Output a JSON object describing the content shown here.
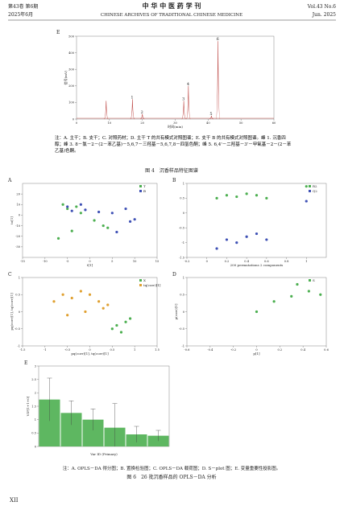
{
  "header": {
    "volume": "第43卷 第6期",
    "date": "2025年6月",
    "journal": "中 华 中 医 药 学 刊",
    "journal_en": "CHINESE ARCHIVES OF TRADITIONAL CHINESE MEDICINE",
    "volume_en": "Vol.43 No.6",
    "date_en": "Jun. 2025"
  },
  "figure4": {
    "panel": "E",
    "chart_data": {
      "type": "chromatogram",
      "xlabel": "时间(min)",
      "ylabel": "信号(mV)",
      "color": "#c0504d",
      "x": [
        9,
        17,
        20,
        32.6,
        34,
        41,
        43
      ],
      "values": [
        110,
        120,
        30,
        110,
        200,
        20,
        470
      ],
      "labels": [
        null,
        "1",
        "2",
        "3",
        "4",
        "5",
        "6"
      ],
      "xlim": [
        0,
        60
      ],
      "xticks": [
        0,
        10,
        20,
        30,
        40,
        50,
        60
      ],
      "ylim": [
        0,
        500
      ],
      "yticks": [
        0,
        100,
        200,
        300,
        400,
        500
      ]
    },
    "note": "注：A. 主干；B. 支干；C. 对照药材；D. 主干 T 的共有模式对照图谱；E. 支干 B 的共有模式对照图谱。峰 1. 沉香四醇；峰 3. 8－氯－2－(2－苯乙基)－5,6,7－三羟基－5,6,7,8－四氢色酮；峰 5. 6,4'－二羟基－3'－甲氧基－2－(2－苯乙基)色酮。",
    "title": "图 4　沉香样品特征图谱"
  },
  "figure6": {
    "panels": [
      {
        "label": "A",
        "chart_data": {
          "type": "scatter",
          "xlabel": "t[1]",
          "ylabel": "to[1]",
          "xlim": [
            -15,
            15
          ],
          "xticks": [
            -15,
            -10,
            -5,
            0,
            5,
            10,
            15
          ],
          "ylim": [
            -40,
            30
          ],
          "yticks": [
            -30,
            -20,
            -10,
            0,
            10,
            20
          ],
          "series": [
            {
              "name": "T",
              "color": "#4caf50",
              "x": [
                -6,
                -5,
                -3,
                -2,
                1,
                3,
                4,
                -4,
                -7
              ],
              "values": [
                10,
                6,
                8,
                2,
                -5,
                -10,
                -12,
                -15,
                -22
              ]
            },
            {
              "name": "B",
              "color": "#3f51b5",
              "x": [
                -5,
                -4,
                -2,
                -1,
                2,
                5,
                8,
                9,
                10,
                6
              ],
              "values": [
                8,
                4,
                10,
                5,
                3,
                2,
                6,
                -6,
                -4,
                -16
              ]
            }
          ]
        }
      },
      {
        "label": "B",
        "chart_data": {
          "type": "scatter",
          "xlabel": "200 permutations 2 components",
          "xlim": [
            -0.2,
            1.2
          ],
          "xticks": [
            -0.2,
            0,
            0.2,
            0.4,
            0.6,
            0.8,
            1
          ],
          "ylim": [
            -1.5,
            1
          ],
          "yticks": [
            -1.5,
            -1,
            -0.5,
            0,
            0.5,
            1
          ],
          "series": [
            {
              "name": "R2",
              "color": "#4caf50",
              "x": [
                0.1,
                0.2,
                0.3,
                0.4,
                0.5,
                0.6,
                1
              ],
              "values": [
                0.5,
                0.6,
                0.55,
                0.65,
                0.6,
                0.5,
                0.9
              ]
            },
            {
              "name": "Q2",
              "color": "#3f51b5",
              "x": [
                0.1,
                0.2,
                0.3,
                0.4,
                0.5,
                0.6,
                1
              ],
              "values": [
                -1.2,
                -0.9,
                -1,
                -0.8,
                -0.7,
                -0.9,
                0.4
              ]
            }
          ]
        }
      },
      {
        "label": "C",
        "chart_data": {
          "type": "scatter",
          "xlabel": "pq(corr)[1], tq(corr)[1]",
          "ylabel": "pq(corr)[1], tq(corr)[1]",
          "xlim": [
            -1.5,
            1.5
          ],
          "xticks": [
            -1.5,
            -1,
            -0.5,
            0,
            0.5,
            1,
            1.5
          ],
          "ylim": [
            -1,
            1
          ],
          "yticks": [
            -1,
            -0.5,
            0,
            0.5,
            1
          ],
          "series": [
            {
              "name": "X",
              "color": "#4caf50",
              "x": [
                0.5,
                0.6,
                0.7,
                0.8,
                0.9
              ],
              "values": [
                -0.5,
                -0.4,
                -0.6,
                -0.3,
                -0.2
              ]
            },
            {
              "name": "tq(corr)[1]",
              "color": "#e0a030",
              "x": [
                -0.8,
                -0.6,
                -0.4,
                -0.2,
                0,
                0.2,
                0.4,
                -0.5,
                -0.1,
                0.3
              ],
              "values": [
                0.3,
                0.5,
                0.4,
                0.6,
                0.5,
                0.3,
                0.2,
                -0.1,
                0,
                0.1
              ]
            }
          ]
        }
      },
      {
        "label": "D",
        "chart_data": {
          "type": "scatter",
          "xlabel": "p[1]",
          "ylabel": "p(corr)[1]",
          "xlim": [
            -0.6,
            0.6
          ],
          "xticks": [
            -0.6,
            -0.4,
            -0.2,
            0,
            0.2,
            0.4,
            0.6
          ],
          "ylim": [
            -1,
            1
          ],
          "yticks": [
            -1,
            -0.5,
            0,
            0.5,
            1
          ],
          "series": [
            {
              "name": "S",
              "color": "#4caf50",
              "x": [
                0,
                0.15,
                0.3,
                0.35,
                0.45,
                0.55
              ],
              "values": [
                0,
                0.3,
                0.45,
                0.8,
                0.6,
                0.5
              ]
            }
          ]
        }
      },
      {
        "label": "E",
        "chart_data": {
          "type": "bar",
          "xlabel": "Var ID (Primary)",
          "ylabel": "VIP[1+1+0]",
          "color": "#4caf50",
          "categories": [
            null,
            null,
            null,
            null,
            null,
            null
          ],
          "values": [
            1.75,
            1.25,
            1.0,
            0.7,
            0.45,
            0.4
          ],
          "errors": [
            0.8,
            0.45,
            0.4,
            0.9,
            0.3,
            0.2
          ],
          "ylim": [
            0,
            3
          ],
          "yticks": [
            0,
            0.5,
            1,
            1.5,
            2,
            2.5,
            3
          ]
        }
      }
    ],
    "note": "注：A. OPLS－DA 得分图；B. 置换检验图；C. OPLS－DA 载荷图；D. S－plot 图；E. 变量重要性投影图。",
    "title": "图 6　26 批沉香样品的 OPLS－DA 分析"
  },
  "page_number": "XII"
}
